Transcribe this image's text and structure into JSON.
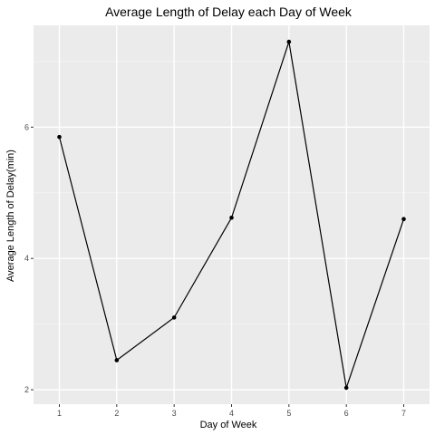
{
  "chart_data": {
    "type": "line",
    "title": "Average Length of Delay each Day of Week",
    "xlabel": "Day of Week",
    "ylabel": "Average Length of Delay(min)",
    "x": [
      1,
      2,
      3,
      4,
      5,
      6,
      7
    ],
    "series": [
      {
        "values": [
          5.85,
          2.45,
          3.1,
          4.62,
          7.3,
          2.03,
          4.6
        ]
      }
    ],
    "xlim": [
      0.55,
      7.45
    ],
    "ylim": [
      1.78,
      7.55
    ],
    "x_ticks": [
      "1",
      "2",
      "3",
      "4",
      "5",
      "6",
      "7"
    ],
    "y_ticks": [
      "2",
      "4",
      "6"
    ],
    "grid": true,
    "colors": {
      "panel_bg": "#EBEBEB",
      "grid_major": "#FFFFFF",
      "grid_minor": "#F5F5F5",
      "line": "#000000",
      "tick_text": "#4D4D4D"
    }
  }
}
